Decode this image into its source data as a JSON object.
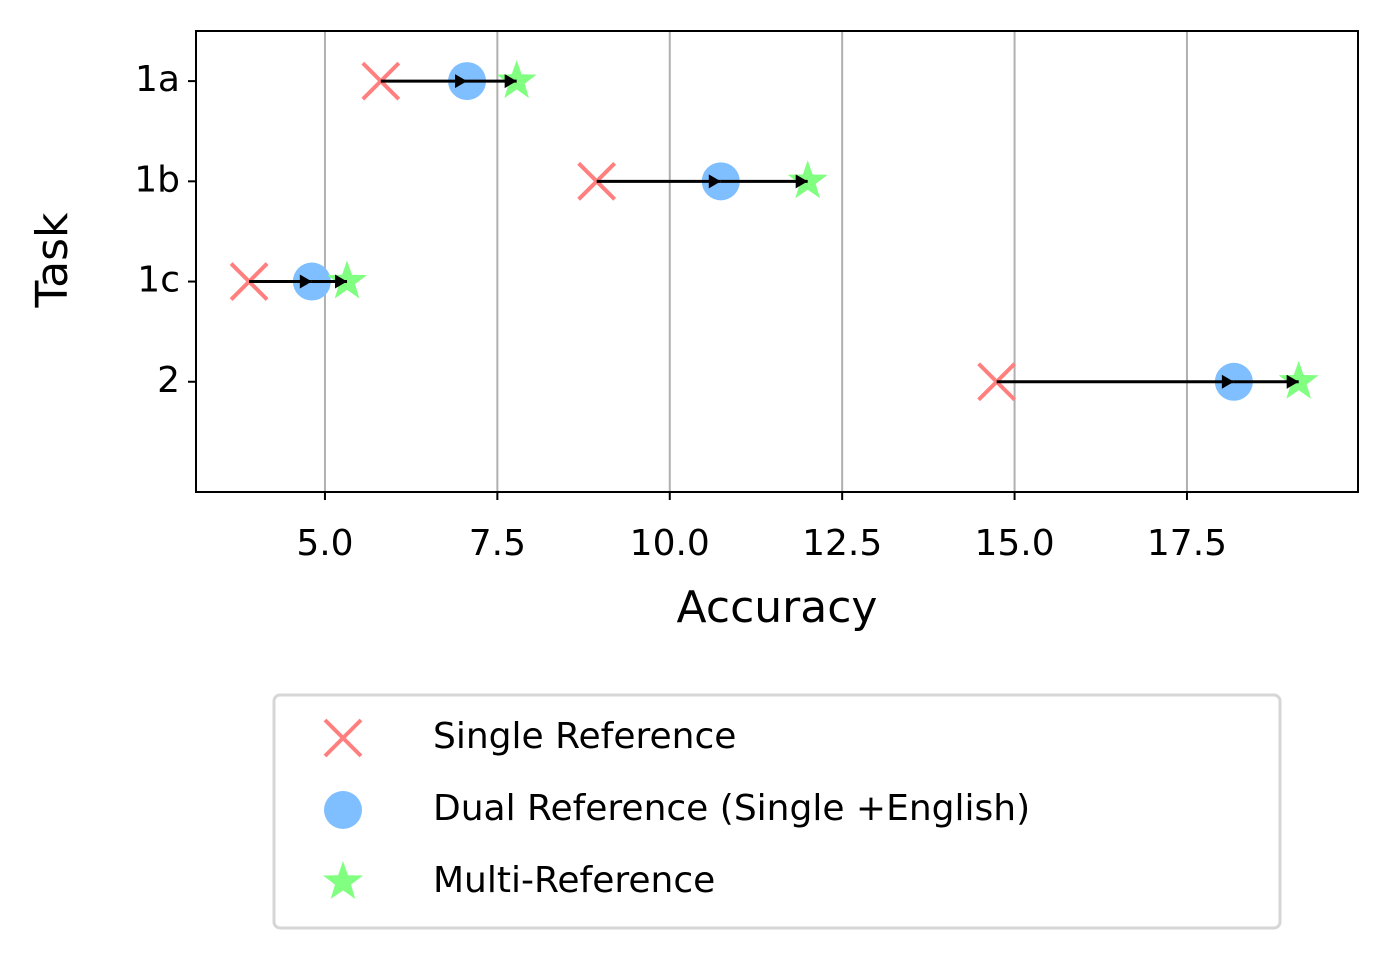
{
  "chart_data": {
    "type": "dot",
    "xlabel": "Accuracy",
    "ylabel": "Task",
    "categories": [
      "1a",
      "1b",
      "1c",
      "2"
    ],
    "series": [
      {
        "name": "Single Reference",
        "color": "#ff7f7f",
        "marker": "x",
        "values": [
          5.81,
          8.94,
          3.9,
          14.74
        ]
      },
      {
        "name": "Dual Reference (Single +English)",
        "color": "#80bfff",
        "marker": "o",
        "values": [
          7.06,
          10.74,
          4.81,
          18.18
        ]
      },
      {
        "name": "Multi-Reference",
        "color": "#80ff80",
        "marker": "*",
        "values": [
          7.78,
          12.0,
          5.32,
          19.12
        ]
      }
    ],
    "xlim": [
      3.13,
      19.98
    ],
    "xticks": [
      {
        "value": 5,
        "label": "5.0"
      },
      {
        "value": 7.5,
        "label": "7.5"
      },
      {
        "value": 10,
        "label": "10.0"
      },
      {
        "value": 12.5,
        "label": "12.5"
      },
      {
        "value": 15,
        "label": "15.0"
      },
      {
        "value": 17.5,
        "label": "17.5"
      }
    ],
    "grid": true,
    "legend": "below"
  }
}
